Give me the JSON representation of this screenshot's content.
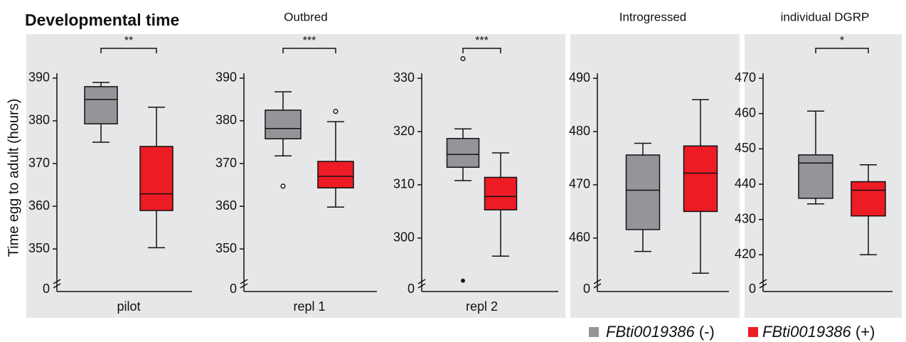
{
  "title": "Developmental time",
  "y_label": "Time egg to adult (hours)",
  "panels": [
    {
      "title": "Outbred"
    },
    {
      "title": "Introgressed"
    },
    {
      "title": "individual DGRP"
    }
  ],
  "legend": [
    {
      "name": "FBti0019386",
      "suffix": "(-)",
      "color": "#939598"
    },
    {
      "name": "FBti0019386",
      "suffix": "(+)",
      "color": "#ed1c24"
    }
  ],
  "chart_data": [
    {
      "type": "box",
      "x_label": "pilot",
      "ylim": [
        341.7,
        400.3
      ],
      "yticks": [
        350,
        360,
        370,
        380,
        390
      ],
      "break_tick": 0,
      "significance": "**",
      "boxes": [
        {
          "whisker_low": 375,
          "q1": 379.3,
          "median": 385,
          "q3": 388,
          "whisker_high": 389,
          "outliers": [],
          "extremes": []
        },
        {
          "whisker_low": 350.3,
          "q1": 359,
          "median": 362.9,
          "q3": 374,
          "whisker_high": 383.2,
          "outliers": [],
          "extremes": []
        }
      ]
    },
    {
      "type": "box",
      "x_label": "repl 1",
      "ylim": [
        341.7,
        400.3
      ],
      "yticks": [
        350,
        360,
        370,
        380,
        390
      ],
      "break_tick": 0,
      "significance": "***",
      "boxes": [
        {
          "whisker_low": 371.8,
          "q1": 375.8,
          "median": 378.2,
          "q3": 382.5,
          "whisker_high": 386.8,
          "outliers": [
            364.7
          ],
          "extremes": []
        },
        {
          "whisker_low": 359.8,
          "q1": 364.3,
          "median": 367,
          "q3": 370.5,
          "whisker_high": 379.8,
          "outliers": [
            382.2
          ],
          "extremes": []
        }
      ]
    },
    {
      "type": "box",
      "x_label": "repl 2",
      "ylim": [
        291.3,
        338.3
      ],
      "yticks": [
        300,
        310,
        320,
        330
      ],
      "break_tick": 0,
      "significance": "***",
      "boxes": [
        {
          "whisker_low": 310.8,
          "q1": 313.3,
          "median": 315.7,
          "q3": 318.7,
          "whisker_high": 320.5,
          "outliers": [
            333.7
          ],
          "extremes": [
            292
          ]
        },
        {
          "whisker_low": 296.6,
          "q1": 305.3,
          "median": 307.8,
          "q3": 311.4,
          "whisker_high": 316,
          "outliers": [],
          "extremes": []
        }
      ]
    },
    {
      "type": "box",
      "ylim": [
        451.3,
        498.3
      ],
      "yticks": [
        460,
        470,
        480,
        490
      ],
      "break_tick": 0,
      "boxes": [
        {
          "whisker_low": 457.5,
          "q1": 461.6,
          "median": 469,
          "q3": 475.6,
          "whisker_high": 477.8,
          "outliers": [],
          "extremes": []
        },
        {
          "whisker_low": 453.4,
          "q1": 465,
          "median": 472.2,
          "q3": 477.3,
          "whisker_high": 486,
          "outliers": [],
          "extremes": []
        }
      ]
    },
    {
      "type": "box",
      "ylim": [
        411.6,
        482.5
      ],
      "yticks": [
        420,
        430,
        440,
        450,
        460,
        470
      ],
      "break_tick": 0,
      "significance": "*",
      "boxes": [
        {
          "whisker_low": 434.4,
          "q1": 436,
          "median": 446,
          "q3": 448.3,
          "whisker_high": 460.7,
          "outliers": [],
          "extremes": []
        },
        {
          "whisker_low": 420,
          "q1": 431,
          "median": 438.3,
          "q3": 440.7,
          "whisker_high": 445.5,
          "outliers": [],
          "extremes": []
        }
      ]
    }
  ]
}
